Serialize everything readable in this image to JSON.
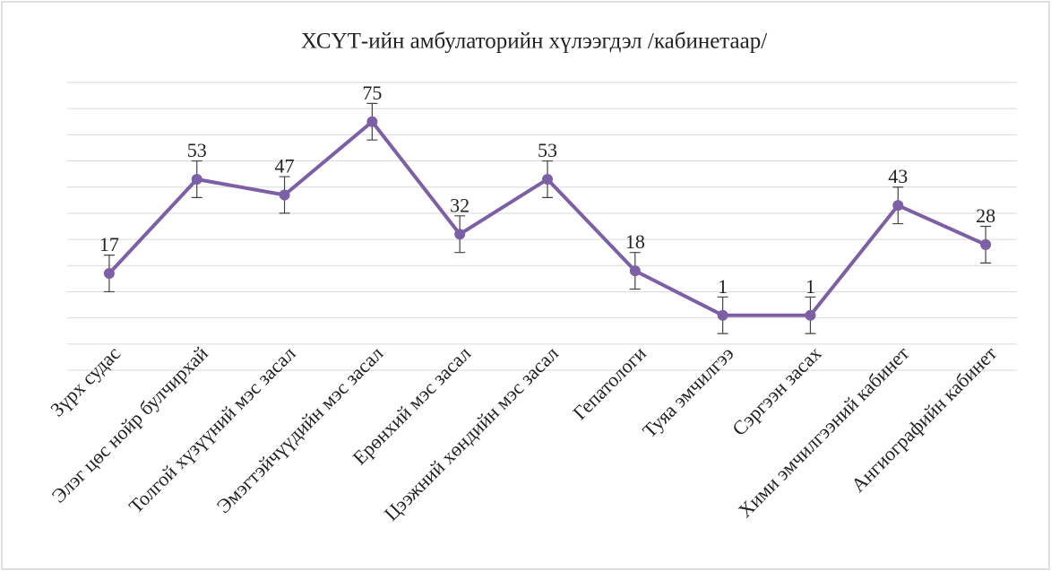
{
  "chart_data": {
    "type": "line",
    "title": "ХСҮТ-ийн амбулаторийн хүлээгдэл /кабинетаар/",
    "categories": [
      "Зүрх судас",
      "Элэг цөс нойр булчирхай",
      "Толгой хүзүүний мэс засал",
      "Эмэгтэйчүүдийн мэс засал",
      "Ерөнхий мэс засал",
      "Цээжний хөндийн мэс засал",
      "Гепатологи",
      "Туяа эмчилгээ",
      "Сэргээн засах",
      "Хими эмчилгээний кабинет",
      "Ангиографийн кабинет"
    ],
    "values": [
      17,
      53,
      47,
      75,
      32,
      53,
      18,
      1,
      1,
      43,
      28
    ],
    "errors": [
      7,
      7,
      7,
      7,
      7,
      7,
      7,
      7,
      7,
      7,
      7
    ],
    "color": "#7d5fa6",
    "ylim": [
      -20,
      90
    ],
    "yticks": [
      -20,
      -10,
      0,
      10,
      20,
      30,
      40,
      50,
      60,
      70,
      80,
      90
    ],
    "grid": true
  }
}
